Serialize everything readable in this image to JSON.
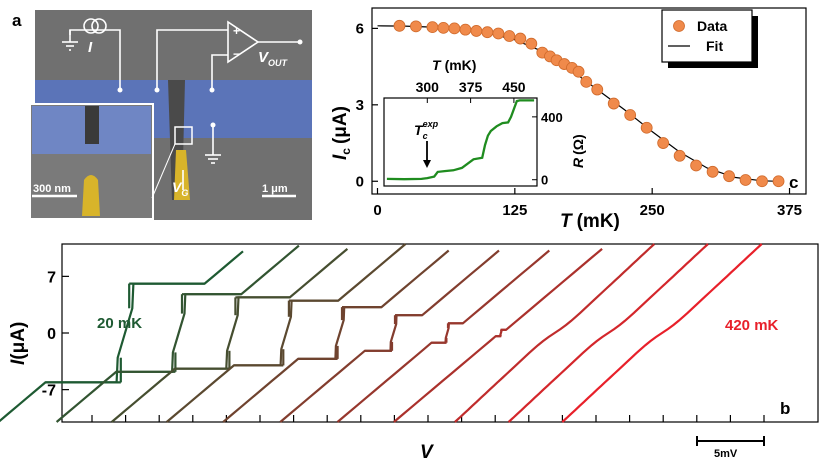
{
  "panel_a": {
    "label": "a",
    "current_source": "I",
    "vout_main": "V",
    "vout_sub": "OUT",
    "gate_main": "V",
    "gate_sub": "G",
    "scale_big": "1 μm",
    "scale_inset": "300 nm",
    "opamp_plus": "+",
    "opamp_minus": "−"
  },
  "colors": {
    "sem_bg": "#6f6f6f",
    "wire_blue": "#5b74b8",
    "gate_gold": "#d8b42a",
    "data_orange": "#f08a4b",
    "inset_green": "#1f8c1f",
    "temp_first": "#1e5a32",
    "temp_last": "#e8202a"
  },
  "chart_data": [
    {
      "id": "panel_c",
      "label": "c",
      "type": "scatter",
      "xlabel_main": "T",
      "xlabel_unit": "(mK)",
      "ylabel_main": "I",
      "ylabel_sub": "c",
      "ylabel_unit": "(μA)",
      "xlim": [
        -5,
        390
      ],
      "ylim": [
        -0.5,
        6.8
      ],
      "x_ticks": [
        0,
        125,
        250,
        375
      ],
      "y_ticks": [
        0,
        3,
        6
      ],
      "legend": [
        "Data",
        "Fit"
      ],
      "legend_position": "top-right",
      "data_x": [
        20,
        35,
        50,
        60,
        70,
        80,
        90,
        100,
        110,
        120,
        130,
        140,
        150,
        157,
        163,
        170,
        177,
        183,
        190,
        200,
        215,
        230,
        245,
        260,
        275,
        290,
        305,
        320,
        335,
        350,
        365
      ],
      "data_y": [
        6.1,
        6.08,
        6.05,
        6.02,
        6.0,
        5.95,
        5.9,
        5.85,
        5.8,
        5.7,
        5.6,
        5.4,
        5.05,
        4.9,
        4.75,
        4.6,
        4.45,
        4.3,
        3.9,
        3.6,
        3.05,
        2.6,
        2.1,
        1.5,
        1.0,
        0.62,
        0.37,
        0.2,
        0.05,
        0.0,
        0.0
      ],
      "fit_x": [
        0,
        25,
        50,
        75,
        100,
        125,
        150,
        175,
        200,
        225,
        250,
        275,
        300,
        325,
        350,
        365
      ],
      "fit_y": [
        6.1,
        6.09,
        6.05,
        5.97,
        5.82,
        5.55,
        5.1,
        4.4,
        3.6,
        2.8,
        1.95,
        1.15,
        0.52,
        0.15,
        0.02,
        0.0
      ],
      "inset": {
        "type": "line",
        "xlabel_main": "T",
        "xlabel_unit": "(mK)",
        "ylabel_main": "R",
        "ylabel_unit": "(Ω)",
        "annotation_main": "T",
        "annotation_sub": "c",
        "annotation_sup": "exp",
        "xlim": [
          225,
          490
        ],
        "ylim": [
          -40,
          520
        ],
        "x_ticks": [
          300,
          375,
          450
        ],
        "y_ticks": [
          0,
          400
        ],
        "x": [
          230,
          260,
          290,
          300,
          312,
          318,
          330,
          345,
          360,
          380,
          395,
          400,
          405,
          410,
          420,
          430,
          440,
          445,
          455,
          460,
          470,
          485
        ],
        "y": [
          5,
          3,
          5,
          10,
          20,
          50,
          55,
          60,
          75,
          130,
          140,
          220,
          280,
          310,
          340,
          360,
          365,
          400,
          500,
          505,
          505,
          505
        ]
      }
    },
    {
      "id": "panel_b",
      "label": "b",
      "type": "line",
      "xlabel": "V",
      "ylabel_main": "I",
      "ylabel_unit": "(μA)",
      "ylim": [
        -11,
        11
      ],
      "y_ticks": [
        7,
        0,
        -7
      ],
      "scale_bar": "5mV",
      "temp_label_first": "20 mK",
      "temp_label_last": "420 mK",
      "curve_count": 11,
      "switching_currents": [
        6.1,
        4.8,
        4.4,
        4.0,
        3.2,
        2.2,
        1.2,
        0.4,
        0,
        0,
        0
      ]
    }
  ]
}
